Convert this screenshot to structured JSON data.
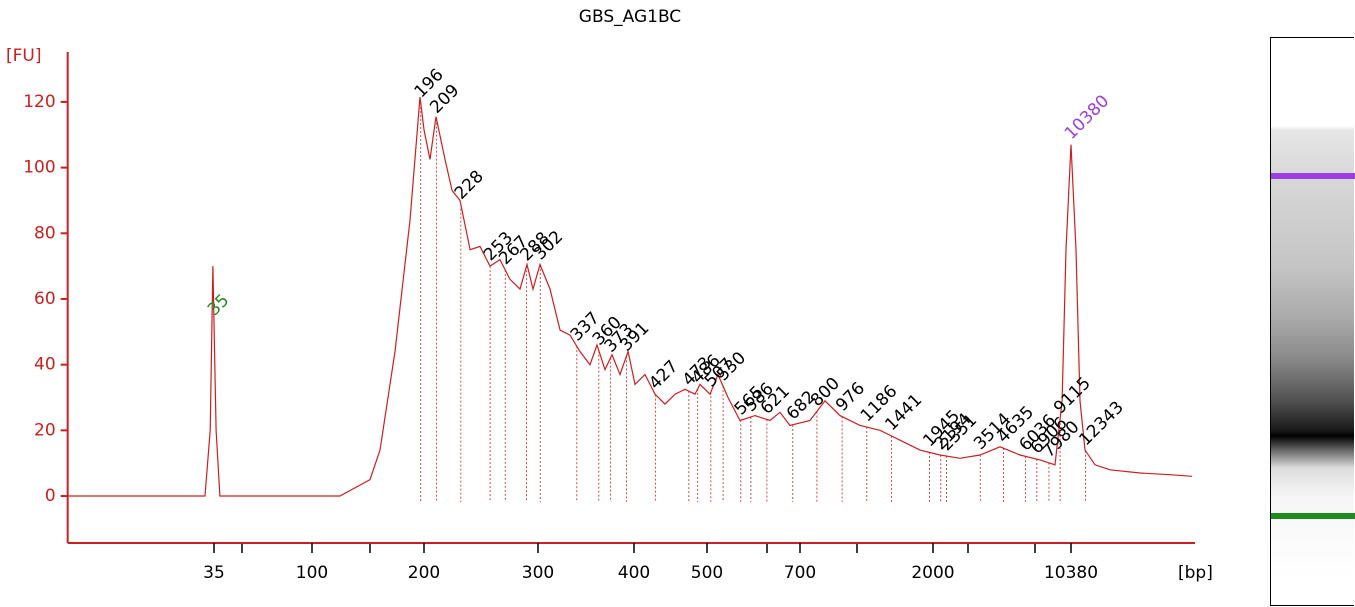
{
  "chart_data": {
    "type": "line",
    "title": "GBS_AG1BC",
    "y_label": "[FU]",
    "x_label": "[bp]",
    "x": [
      7.3,
      31.8,
      33.6,
      34.6,
      35.8,
      37.3,
      118.9,
      143.2,
      152.3,
      167.1,
      183.4,
      195.1,
      200,
      204.3,
      208.7,
      215.5,
      221,
      227.3,
      235.6,
      244.1,
      252.9,
      262,
      271.6,
      281.4,
      288.5,
      294.7,
      301.8,
      311,
      320.5,
      330.2,
      340.2,
      350.6,
      358,
      366.7,
      374.5,
      383.6,
      393,
      401.2,
      413.7,
      426.5,
      439.7,
      453.4,
      467.5,
      482,
      489.4,
      505.5,
      520.3,
      539.5,
      563.4,
      594.9,
      628,
      651.1,
      675,
      757.5,
      852.5,
      959.6,
      1124,
      1316,
      1541,
      1805,
      2174,
      2760,
      3504,
      4449,
      5647,
      7171,
      8577,
      9329,
      9780,
      10380,
      11018,
      11557,
      12267,
      13822,
      16530,
      23650,
      33820,
      44000
    ],
    "values": [
      0,
      0,
      20,
      70,
      20,
      0,
      0,
      5,
      14,
      44,
      84,
      121.5,
      111.5,
      102.5,
      115.5,
      102.5,
      93,
      90,
      75,
      76,
      70,
      72,
      66,
      63,
      70.5,
      63,
      70.5,
      63,
      50.5,
      49,
      44,
      40,
      46,
      38.5,
      43,
      37,
      44,
      34,
      37,
      31,
      28,
      31,
      32.5,
      31,
      34,
      31,
      37,
      30,
      23,
      24.5,
      23,
      25.5,
      21.5,
      23,
      29,
      24.5,
      21.5,
      20,
      17,
      14,
      12.5,
      11.5,
      12.5,
      15,
      12.5,
      11,
      9.5,
      29,
      75,
      107,
      75,
      29,
      14,
      9.5,
      8,
      7,
      6.5,
      6
    ],
    "color": "#cc1f1f",
    "xscale": "log",
    "xlim": [
      7.3,
      45600
    ],
    "ylim": [
      -14.3,
      135.2
    ],
    "xticks": [
      35,
      100,
      200,
      300,
      400,
      500,
      700,
      2000,
      10380
    ],
    "yticks": [
      0,
      20,
      40,
      60,
      80,
      100,
      120
    ],
    "peaks": [
      196,
      209,
      228,
      253,
      267,
      288,
      302,
      337,
      360,
      373,
      391,
      427,
      473,
      486,
      507,
      530,
      565,
      586,
      621,
      682,
      800,
      976,
      1186,
      1441,
      1945,
      2194,
      2351,
      3514,
      4635,
      6036,
      6906,
      7980,
      9115,
      12343
    ],
    "lower_marker": {
      "value": 35,
      "color": "#1e8c1e"
    },
    "upper_marker": {
      "value": 10380,
      "color": "#9b3fe0"
    }
  }
}
